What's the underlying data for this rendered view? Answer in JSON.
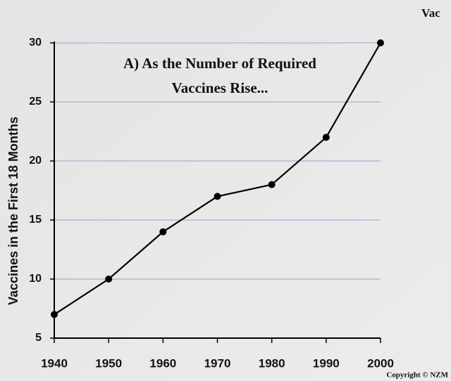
{
  "chart_data": {
    "type": "line",
    "title": [
      "A) As the Number of Required",
      "Vaccines Rise..."
    ],
    "y_label": "Vaccines in the First 18 Months",
    "annotations": [
      "Vac",
      "Copyright © NZM"
    ],
    "x": [
      1940,
      1950,
      1960,
      1970,
      1980,
      1990,
      2000
    ],
    "series": [
      {
        "name": "Vaccines",
        "color": "#000000",
        "values": [
          7,
          10,
          14,
          17,
          18,
          22,
          30
        ]
      }
    ],
    "xlim": [
      1940,
      2000
    ],
    "xticks": [
      1940,
      1950,
      1960,
      1970,
      1980,
      1990,
      2000
    ],
    "ylim": [
      5,
      30
    ],
    "yticks": [
      5,
      10,
      15,
      20,
      25,
      30
    ],
    "grid": true,
    "grid_color": "#b9a8d8"
  }
}
